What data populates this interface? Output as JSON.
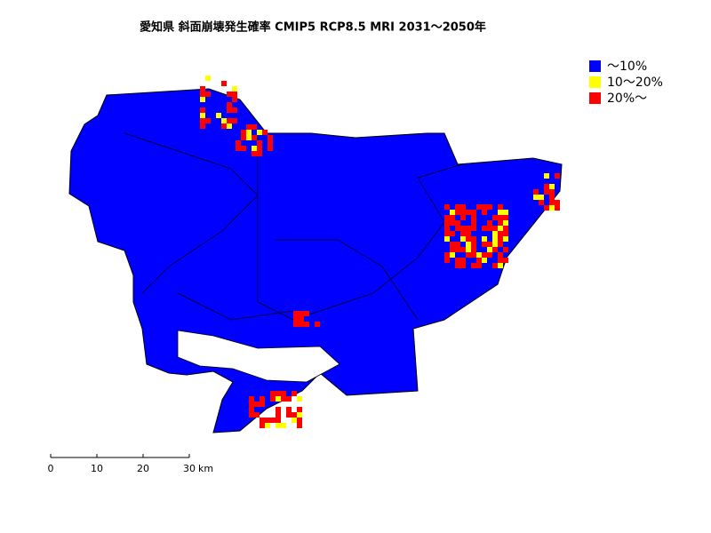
{
  "title": "愛知県 斜面崩壊発生確率 CMIP5 RCP8.5 MRI 2031～2050年",
  "legend": [
    {
      "label": "～10%",
      "color": "#0000ff"
    },
    {
      "label": "10～20%",
      "color": "#ffff00"
    },
    {
      "label": "20%～",
      "color": "#ff0000"
    }
  ],
  "scale_bar": {
    "ticks": [
      0,
      10,
      20,
      30
    ],
    "unit": "km"
  }
}
